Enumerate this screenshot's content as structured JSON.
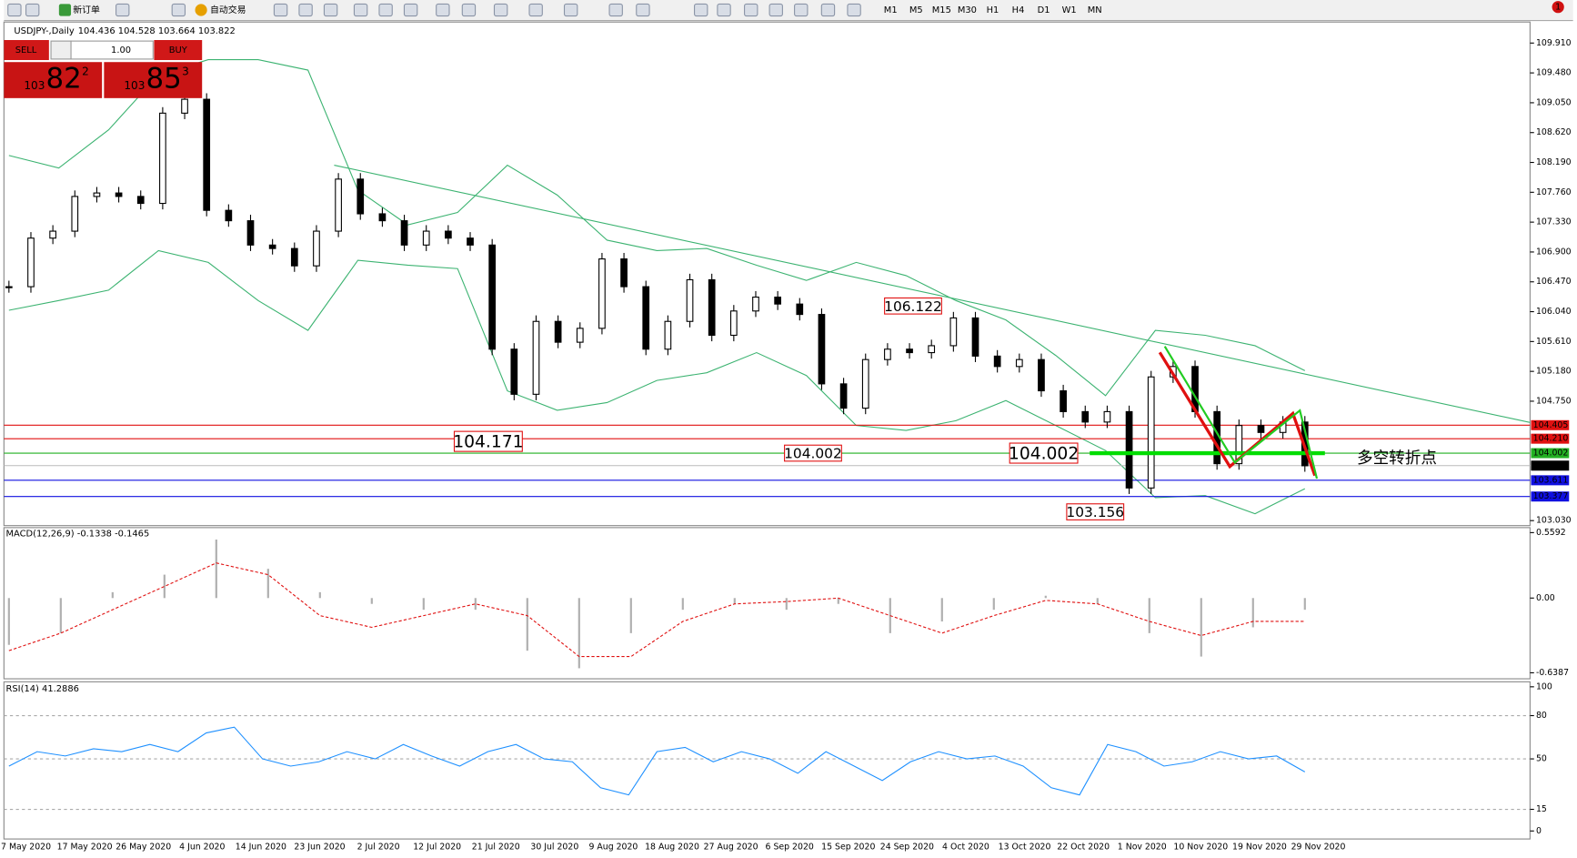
{
  "toolbar": {
    "new_order": "新订单",
    "auto_trading": "自动交易",
    "timeframes": [
      "M1",
      "M5",
      "M15",
      "M30",
      "H1",
      "H4",
      "D1",
      "W1",
      "MN"
    ],
    "notifications": "1"
  },
  "chart_header": {
    "symbol": "USDJPY-,Daily",
    "ohlc": "104.436 104.528 103.664 103.822"
  },
  "trade_panel": {
    "sell": "SELL",
    "buy": "BUY",
    "lots": "1.00",
    "bid_big": "103",
    "bid_main": "82",
    "bid_pip": "2",
    "ask_big": "103",
    "ask_main": "85",
    "ask_pip": "3"
  },
  "price_axis": {
    "ticks": [
      {
        "value": 109.91,
        "label": "109.910"
      },
      {
        "value": 109.48,
        "label": "109.480"
      },
      {
        "value": 109.05,
        "label": "109.050"
      },
      {
        "value": 108.62,
        "label": "108.620"
      },
      {
        "value": 108.19,
        "label": "108.190"
      },
      {
        "value": 107.76,
        "label": "107.760"
      },
      {
        "value": 107.33,
        "label": "107.330"
      },
      {
        "value": 106.9,
        "label": "106.900"
      },
      {
        "value": 106.47,
        "label": "106.470"
      },
      {
        "value": 106.04,
        "label": "106.040"
      },
      {
        "value": 105.61,
        "label": "105.610"
      },
      {
        "value": 105.18,
        "label": "105.180"
      },
      {
        "value": 104.75,
        "label": "104.750"
      },
      {
        "value": 103.03,
        "label": "103.030"
      }
    ]
  },
  "levels": [
    {
      "value": 104.405,
      "label": "104.405",
      "color": "#e01010"
    },
    {
      "value": 104.21,
      "label": "104.210",
      "color": "#e01010"
    },
    {
      "value": 104.002,
      "label": "104.002",
      "color": "#22b022"
    },
    {
      "value": 103.822,
      "label": "103.822",
      "color": "#000000"
    },
    {
      "value": 103.611,
      "label": "103.611",
      "color": "#1010e0"
    },
    {
      "value": 103.377,
      "label": "103.377",
      "color": "#1010e0"
    }
  ],
  "annotations": [
    {
      "value": 106.122,
      "label": "106.122"
    },
    {
      "value": 104.171,
      "label": "104.171"
    },
    {
      "value": 104.002,
      "label": "104.002"
    },
    {
      "value": 104.002,
      "label": "104.002"
    },
    {
      "value": 103.156,
      "label": "103.156"
    }
  ],
  "note": "多空转折点",
  "closes": [
    106.4,
    107.1,
    107.2,
    107.7,
    107.75,
    107.7,
    107.6,
    108.9,
    109.1,
    107.5,
    107.35,
    107.0,
    106.95,
    106.7,
    107.2,
    107.95,
    107.45,
    107.35,
    107.0,
    107.2,
    107.1,
    107.0,
    105.5,
    104.85,
    105.9,
    105.6,
    105.8,
    106.8,
    106.4,
    105.5,
    105.9,
    106.5,
    105.7,
    106.05,
    106.25,
    106.15,
    106.0,
    105.0,
    104.65,
    105.35,
    105.5,
    105.45,
    105.55,
    105.95,
    105.4,
    105.25,
    105.35,
    104.9,
    104.6,
    104.45,
    104.6,
    103.5,
    105.1,
    105.25,
    104.6,
    103.85,
    104.4,
    104.3,
    104.45,
    103.82
  ],
  "bollinger": {
    "upper": [
      108.29,
      108.11,
      108.66,
      109.45,
      109.67,
      109.67,
      109.52,
      107.79,
      107.29,
      107.47,
      108.15,
      107.72,
      107.07,
      106.92,
      106.95,
      106.71,
      106.49,
      106.75,
      106.56,
      106.2,
      105.92,
      105.41,
      104.83,
      105.77,
      105.7,
      105.55,
      105.19
    ],
    "lower": [
      106.06,
      106.2,
      106.35,
      106.92,
      106.75,
      106.2,
      105.77,
      106.78,
      106.71,
      106.66,
      104.9,
      104.62,
      104.73,
      105.05,
      105.16,
      105.45,
      105.12,
      104.4,
      104.33,
      104.47,
      104.76,
      104.4,
      104.04,
      103.36,
      103.39,
      103.13,
      103.49
    ]
  },
  "macd": {
    "label": "MACD(12,26,9) -0.1338 -0.1465",
    "ticks": [
      {
        "value": 0.5592,
        "label": "0.5592"
      },
      {
        "value": 0,
        "label": "0.00"
      },
      {
        "value": -0.6387,
        "label": "-0.6387"
      }
    ],
    "histogram": [
      -0.4,
      -0.3,
      0.05,
      0.2,
      0.5,
      0.25,
      0.05,
      -0.05,
      -0.1,
      -0.1,
      -0.45,
      -0.6,
      -0.3,
      -0.1,
      -0.05,
      -0.1,
      -0.05,
      -0.3,
      -0.2,
      -0.1,
      0.02,
      -0.05,
      -0.3,
      -0.5,
      -0.25,
      -0.1
    ],
    "signal": [
      -0.45,
      -0.3,
      -0.1,
      0.1,
      0.3,
      0.2,
      -0.15,
      -0.25,
      -0.15,
      -0.05,
      -0.15,
      -0.5,
      -0.5,
      -0.2,
      -0.05,
      -0.03,
      0,
      -0.15,
      -0.3,
      -0.15,
      -0.02,
      -0.05,
      -0.2,
      -0.32,
      -0.2,
      -0.2
    ]
  },
  "rsi": {
    "label": "RSI(14) 41.2886",
    "ticks": [
      100,
      80,
      50,
      15,
      0
    ],
    "values": [
      45,
      55,
      52,
      57,
      55,
      60,
      55,
      68,
      72,
      50,
      45,
      48,
      55,
      50,
      60,
      52,
      45,
      55,
      60,
      50,
      48,
      30,
      25,
      55,
      58,
      48,
      55,
      50,
      40,
      55,
      45,
      35,
      48,
      55,
      50,
      52,
      45,
      30,
      25,
      60,
      55,
      45,
      48,
      55,
      50,
      52,
      41
    ]
  },
  "dates": [
    "7 May 2020",
    "17 May 2020",
    "26 May 2020",
    "4 Jun 2020",
    "14 Jun 2020",
    "23 Jun 2020",
    "2 Jul 2020",
    "12 Jul 2020",
    "21 Jul 2020",
    "30 Jul 2020",
    "9 Aug 2020",
    "18 Aug 2020",
    "27 Aug 2020",
    "6 Sep 2020",
    "15 Sep 2020",
    "24 Sep 2020",
    "4 Oct 2020",
    "13 Oct 2020",
    "22 Oct 2020",
    "1 Nov 2020",
    "10 Nov 2020",
    "19 Nov 2020",
    "29 Nov 2020"
  ]
}
